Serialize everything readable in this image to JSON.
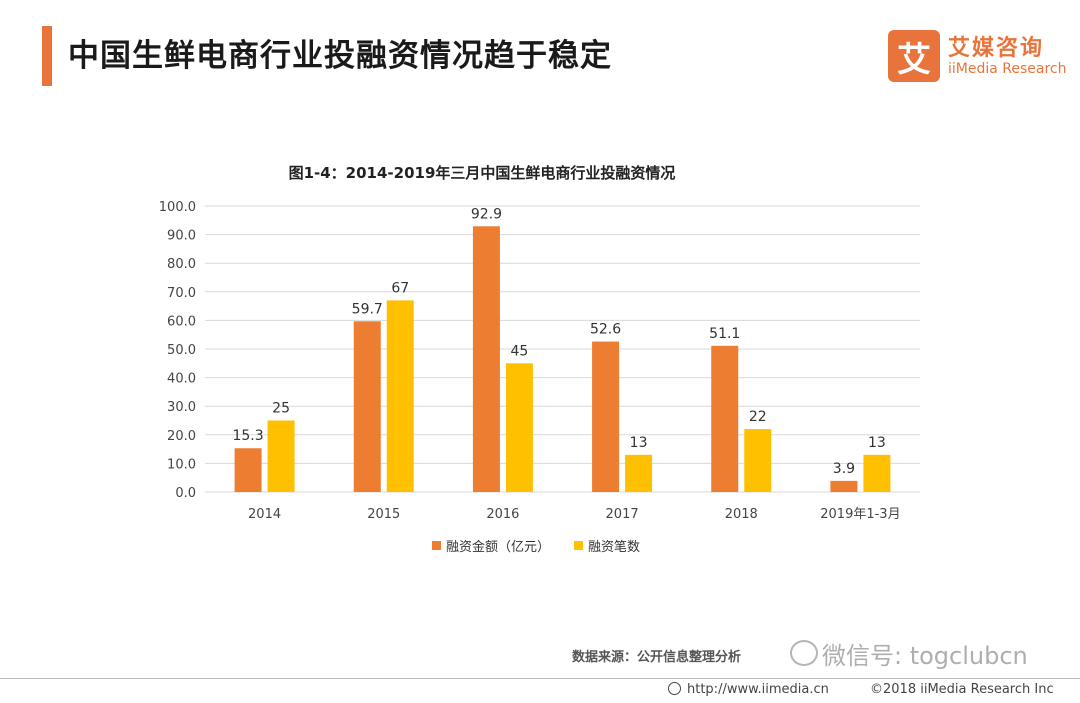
{
  "header": {
    "title": "中国生鲜电商行业投融资情况趋于稳定",
    "logo_mark": "艾",
    "logo_cn": "艾媒咨询",
    "logo_en": "iiMedia Research"
  },
  "colors": {
    "accent": "#e8743b",
    "series_amount": "#ed7d31",
    "series_count": "#ffc000",
    "grid": "#d9d9d9"
  },
  "chart_data": {
    "type": "bar",
    "title": "图1-4：2014-2019年三月中国生鲜电商行业投融资情况",
    "categories": [
      "2014",
      "2015",
      "2016",
      "2017",
      "2018",
      "2019年1-3月"
    ],
    "series": [
      {
        "name": "融资金额（亿元）",
        "values": [
          15.3,
          59.7,
          92.9,
          52.6,
          51.1,
          3.9
        ],
        "labels": [
          "15.3",
          "59.7",
          "92.9",
          "52.6",
          "51.1",
          "3.9"
        ]
      },
      {
        "name": "融资笔数",
        "values": [
          25,
          67,
          45,
          13,
          22,
          13
        ],
        "labels": [
          "25",
          "67",
          "45",
          "13",
          "22",
          "13"
        ]
      }
    ],
    "ylim": [
      0,
      100
    ],
    "yticks": [
      "0.0",
      "10.0",
      "20.0",
      "30.0",
      "40.0",
      "50.0",
      "60.0",
      "70.0",
      "80.0",
      "90.0",
      "100.0"
    ],
    "grid": true,
    "legend_position": "bottom"
  },
  "footer": {
    "source": "数据来源：公开信息整理分析",
    "watermark": "微信号: togclubcn",
    "url": "http://www.iimedia.cn",
    "copyright": "©2018  iiMedia Research  Inc"
  }
}
